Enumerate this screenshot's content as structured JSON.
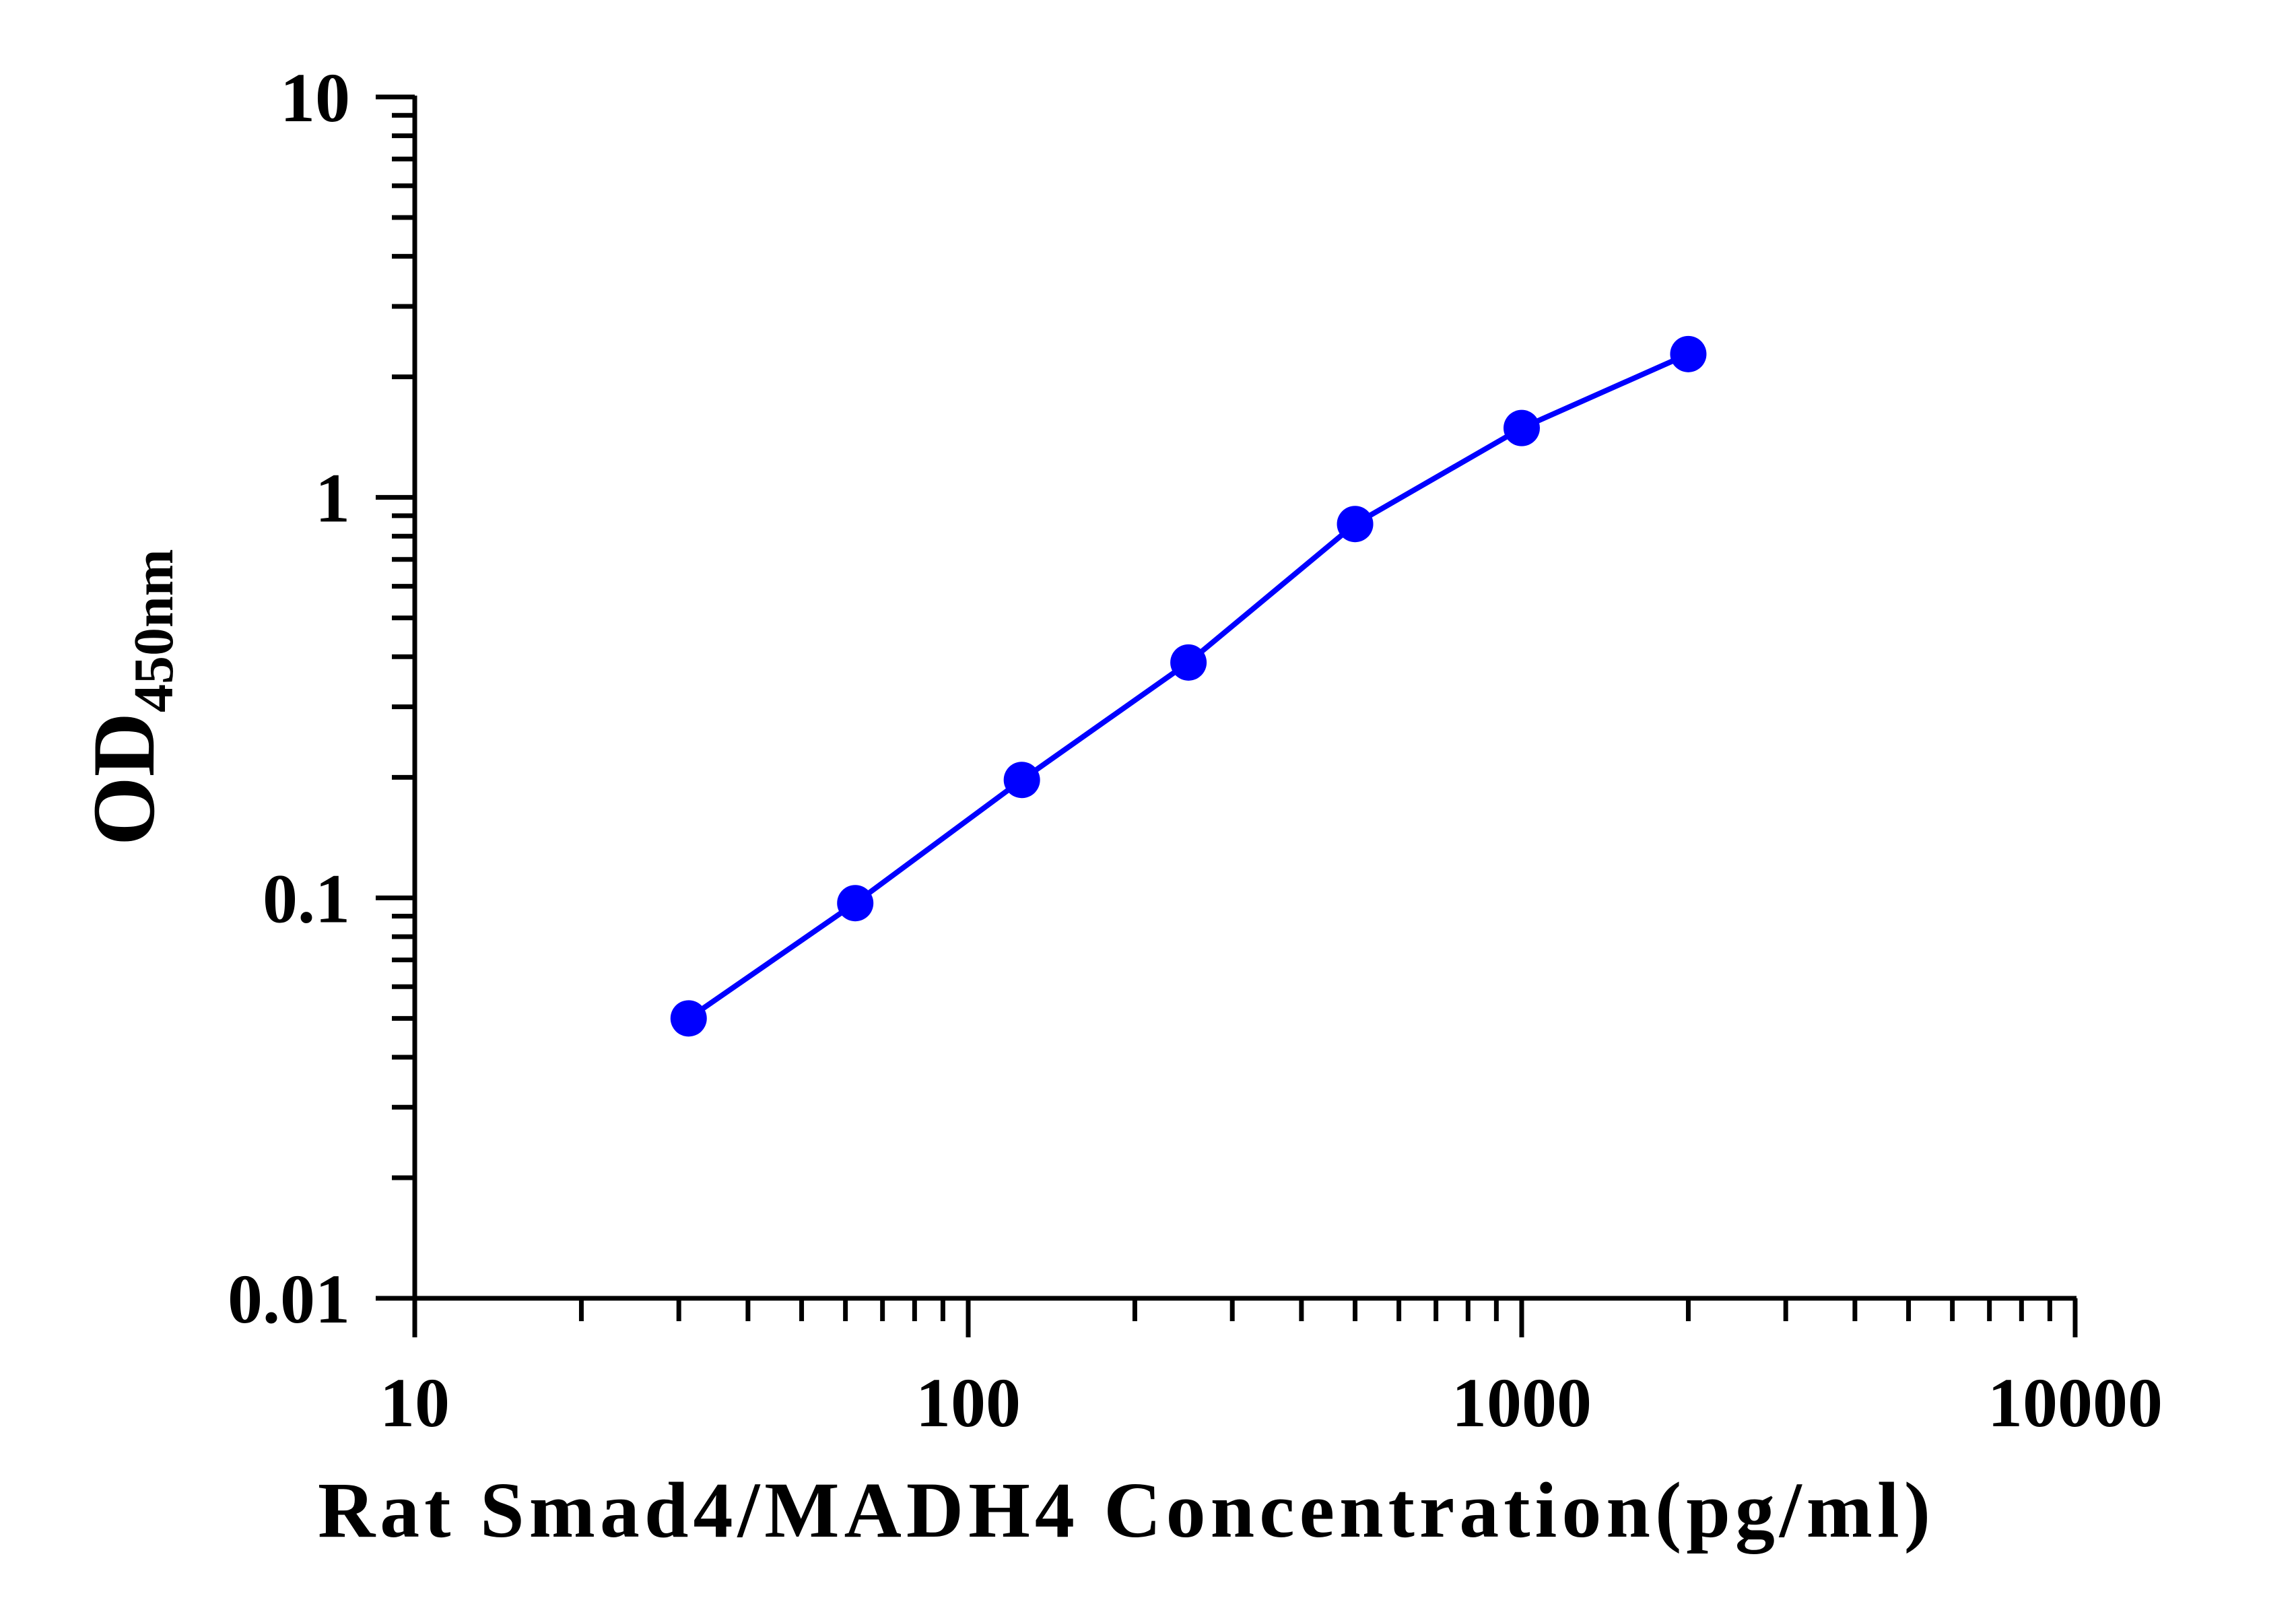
{
  "chart_data": {
    "type": "line",
    "title": "",
    "xlabel": "Rat Smad4/MADH4 Concentration(pg/ml)",
    "ylabel_main": "OD",
    "ylabel_sub": "450nm",
    "xscale": "log",
    "yscale": "log",
    "xlim": [
      10,
      10000
    ],
    "ylim": [
      0.01,
      10
    ],
    "x_ticks": [
      "10",
      "100",
      "1000",
      "10000"
    ],
    "y_ticks": [
      "0.01",
      "0.1",
      "1",
      "10"
    ],
    "grid": false,
    "legend": "none",
    "color": "#0000ff",
    "series": [
      {
        "x": [
          31.25,
          62.5,
          125,
          250,
          500,
          1000,
          2000
        ],
        "y": [
          0.05,
          0.097,
          0.197,
          0.387,
          0.858,
          1.49,
          2.28
        ]
      }
    ]
  }
}
